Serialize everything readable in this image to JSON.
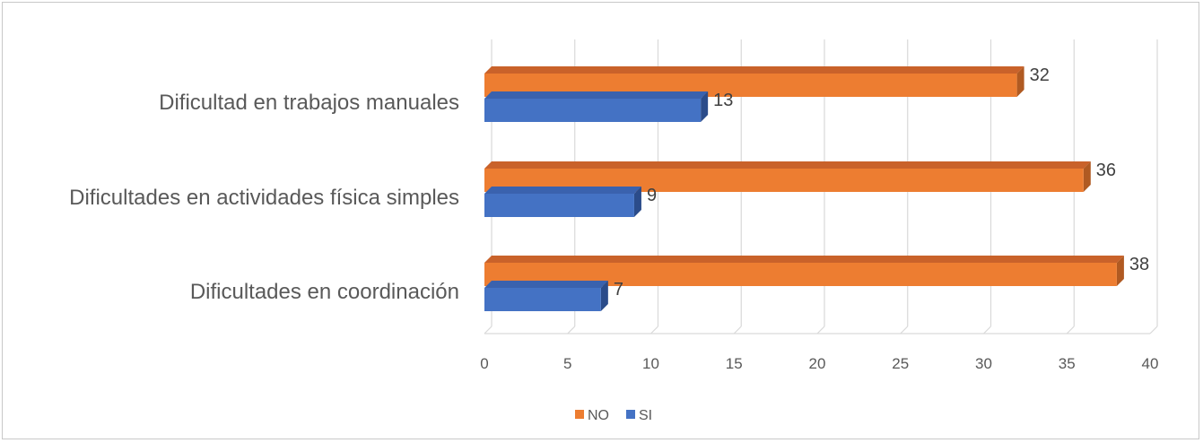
{
  "chart_data": {
    "type": "bar",
    "orientation": "horizontal",
    "style": "3d",
    "categories": [
      "Dificultad en trabajos manuales",
      "Dificultades en actividades física simples",
      "Dificultades en coordinación"
    ],
    "series": [
      {
        "name": "NO",
        "values": [
          32,
          36,
          38
        ],
        "color": "#ED7D31",
        "side_color": "#B05A22",
        "top_color": "#C9622A"
      },
      {
        "name": "SI",
        "values": [
          13,
          9,
          7
        ],
        "color": "#4472C4",
        "side_color": "#2B4C8A",
        "top_color": "#3A62AE"
      }
    ],
    "xlim": [
      0,
      40
    ],
    "xticks": [
      0,
      5,
      10,
      15,
      20,
      25,
      30,
      35,
      40
    ],
    "grid": true,
    "legend": "bottom-center",
    "title": "",
    "xlabel": "",
    "ylabel": ""
  }
}
